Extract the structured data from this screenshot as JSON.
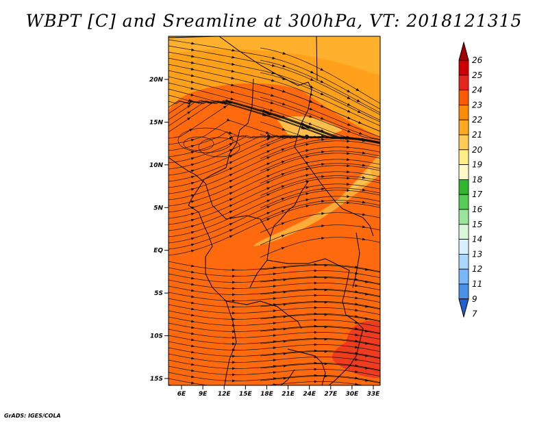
{
  "title": "WBPT [C] and Sreamline at 300hPa, VT: 2018121315",
  "credit": "GrADS: IGES/COLA",
  "map": {
    "lat_labels": [
      "20N",
      "15N",
      "10N",
      "5N",
      "EQ",
      "5S",
      "10S",
      "15S"
    ],
    "lon_labels": [
      "6E",
      "9E",
      "12E",
      "15E",
      "18E",
      "21E",
      "24E",
      "27E",
      "30E",
      "33E"
    ],
    "fill_colors": {
      "dominant": "#ff6a0f",
      "north_band": "#ffa11a",
      "yellow_patches": "#ffcc55",
      "hot_spot": "#ef3b1e"
    }
  },
  "colorbar": {
    "labels": [
      "26",
      "25",
      "24",
      "23",
      "22",
      "21",
      "20",
      "19",
      "18",
      "17",
      "16",
      "15",
      "14",
      "13",
      "12",
      "11",
      "9",
      "7"
    ],
    "colors": [
      "#a50000",
      "#cc0000",
      "#e4251a",
      "#ff5a00",
      "#ff8c00",
      "#ffaa22",
      "#ffcc55",
      "#ffee88",
      "#fffac8",
      "#2fb72f",
      "#55cc55",
      "#99e599",
      "#d8f8d8",
      "#d8f0ff",
      "#a8d8ff",
      "#78b8f8",
      "#4a90e8",
      "#2060d0"
    ]
  }
}
